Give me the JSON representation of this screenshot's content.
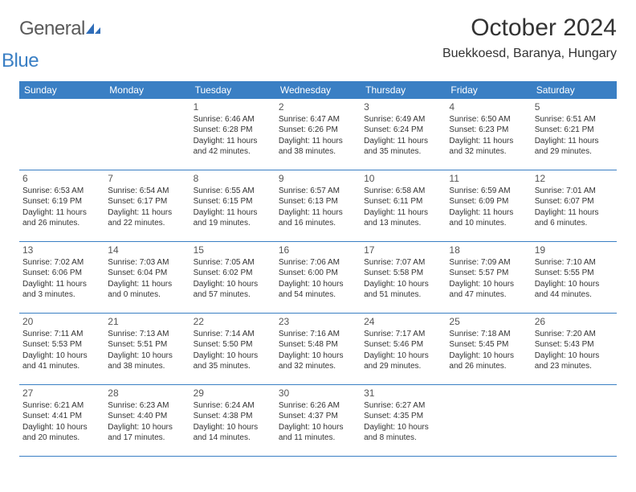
{
  "brand": {
    "general": "General",
    "blue": "Blue"
  },
  "title": "October 2024",
  "location": "Buekkoesd, Baranya, Hungary",
  "colors": {
    "header_blue": "#3a7fc4",
    "text": "#333333",
    "logo_gray": "#5a5a5a",
    "rule": "#3a7fc4",
    "background": "#ffffff"
  },
  "typography": {
    "title_fontsize": 30,
    "location_fontsize": 16,
    "dow_fontsize": 12,
    "daynum_fontsize": 12,
    "info_fontsize": 10
  },
  "days_of_week": [
    "Sunday",
    "Monday",
    "Tuesday",
    "Wednesday",
    "Thursday",
    "Friday",
    "Saturday"
  ],
  "weeks": [
    [
      {},
      {},
      {
        "n": "1",
        "sunrise": "Sunrise: 6:46 AM",
        "sunset": "Sunset: 6:28 PM",
        "daylight": "Daylight: 11 hours and 42 minutes."
      },
      {
        "n": "2",
        "sunrise": "Sunrise: 6:47 AM",
        "sunset": "Sunset: 6:26 PM",
        "daylight": "Daylight: 11 hours and 38 minutes."
      },
      {
        "n": "3",
        "sunrise": "Sunrise: 6:49 AM",
        "sunset": "Sunset: 6:24 PM",
        "daylight": "Daylight: 11 hours and 35 minutes."
      },
      {
        "n": "4",
        "sunrise": "Sunrise: 6:50 AM",
        "sunset": "Sunset: 6:23 PM",
        "daylight": "Daylight: 11 hours and 32 minutes."
      },
      {
        "n": "5",
        "sunrise": "Sunrise: 6:51 AM",
        "sunset": "Sunset: 6:21 PM",
        "daylight": "Daylight: 11 hours and 29 minutes."
      }
    ],
    [
      {
        "n": "6",
        "sunrise": "Sunrise: 6:53 AM",
        "sunset": "Sunset: 6:19 PM",
        "daylight": "Daylight: 11 hours and 26 minutes."
      },
      {
        "n": "7",
        "sunrise": "Sunrise: 6:54 AM",
        "sunset": "Sunset: 6:17 PM",
        "daylight": "Daylight: 11 hours and 22 minutes."
      },
      {
        "n": "8",
        "sunrise": "Sunrise: 6:55 AM",
        "sunset": "Sunset: 6:15 PM",
        "daylight": "Daylight: 11 hours and 19 minutes."
      },
      {
        "n": "9",
        "sunrise": "Sunrise: 6:57 AM",
        "sunset": "Sunset: 6:13 PM",
        "daylight": "Daylight: 11 hours and 16 minutes."
      },
      {
        "n": "10",
        "sunrise": "Sunrise: 6:58 AM",
        "sunset": "Sunset: 6:11 PM",
        "daylight": "Daylight: 11 hours and 13 minutes."
      },
      {
        "n": "11",
        "sunrise": "Sunrise: 6:59 AM",
        "sunset": "Sunset: 6:09 PM",
        "daylight": "Daylight: 11 hours and 10 minutes."
      },
      {
        "n": "12",
        "sunrise": "Sunrise: 7:01 AM",
        "sunset": "Sunset: 6:07 PM",
        "daylight": "Daylight: 11 hours and 6 minutes."
      }
    ],
    [
      {
        "n": "13",
        "sunrise": "Sunrise: 7:02 AM",
        "sunset": "Sunset: 6:06 PM",
        "daylight": "Daylight: 11 hours and 3 minutes."
      },
      {
        "n": "14",
        "sunrise": "Sunrise: 7:03 AM",
        "sunset": "Sunset: 6:04 PM",
        "daylight": "Daylight: 11 hours and 0 minutes."
      },
      {
        "n": "15",
        "sunrise": "Sunrise: 7:05 AM",
        "sunset": "Sunset: 6:02 PM",
        "daylight": "Daylight: 10 hours and 57 minutes."
      },
      {
        "n": "16",
        "sunrise": "Sunrise: 7:06 AM",
        "sunset": "Sunset: 6:00 PM",
        "daylight": "Daylight: 10 hours and 54 minutes."
      },
      {
        "n": "17",
        "sunrise": "Sunrise: 7:07 AM",
        "sunset": "Sunset: 5:58 PM",
        "daylight": "Daylight: 10 hours and 51 minutes."
      },
      {
        "n": "18",
        "sunrise": "Sunrise: 7:09 AM",
        "sunset": "Sunset: 5:57 PM",
        "daylight": "Daylight: 10 hours and 47 minutes."
      },
      {
        "n": "19",
        "sunrise": "Sunrise: 7:10 AM",
        "sunset": "Sunset: 5:55 PM",
        "daylight": "Daylight: 10 hours and 44 minutes."
      }
    ],
    [
      {
        "n": "20",
        "sunrise": "Sunrise: 7:11 AM",
        "sunset": "Sunset: 5:53 PM",
        "daylight": "Daylight: 10 hours and 41 minutes."
      },
      {
        "n": "21",
        "sunrise": "Sunrise: 7:13 AM",
        "sunset": "Sunset: 5:51 PM",
        "daylight": "Daylight: 10 hours and 38 minutes."
      },
      {
        "n": "22",
        "sunrise": "Sunrise: 7:14 AM",
        "sunset": "Sunset: 5:50 PM",
        "daylight": "Daylight: 10 hours and 35 minutes."
      },
      {
        "n": "23",
        "sunrise": "Sunrise: 7:16 AM",
        "sunset": "Sunset: 5:48 PM",
        "daylight": "Daylight: 10 hours and 32 minutes."
      },
      {
        "n": "24",
        "sunrise": "Sunrise: 7:17 AM",
        "sunset": "Sunset: 5:46 PM",
        "daylight": "Daylight: 10 hours and 29 minutes."
      },
      {
        "n": "25",
        "sunrise": "Sunrise: 7:18 AM",
        "sunset": "Sunset: 5:45 PM",
        "daylight": "Daylight: 10 hours and 26 minutes."
      },
      {
        "n": "26",
        "sunrise": "Sunrise: 7:20 AM",
        "sunset": "Sunset: 5:43 PM",
        "daylight": "Daylight: 10 hours and 23 minutes."
      }
    ],
    [
      {
        "n": "27",
        "sunrise": "Sunrise: 6:21 AM",
        "sunset": "Sunset: 4:41 PM",
        "daylight": "Daylight: 10 hours and 20 minutes."
      },
      {
        "n": "28",
        "sunrise": "Sunrise: 6:23 AM",
        "sunset": "Sunset: 4:40 PM",
        "daylight": "Daylight: 10 hours and 17 minutes."
      },
      {
        "n": "29",
        "sunrise": "Sunrise: 6:24 AM",
        "sunset": "Sunset: 4:38 PM",
        "daylight": "Daylight: 10 hours and 14 minutes."
      },
      {
        "n": "30",
        "sunrise": "Sunrise: 6:26 AM",
        "sunset": "Sunset: 4:37 PM",
        "daylight": "Daylight: 10 hours and 11 minutes."
      },
      {
        "n": "31",
        "sunrise": "Sunrise: 6:27 AM",
        "sunset": "Sunset: 4:35 PM",
        "daylight": "Daylight: 10 hours and 8 minutes."
      },
      {},
      {}
    ]
  ]
}
